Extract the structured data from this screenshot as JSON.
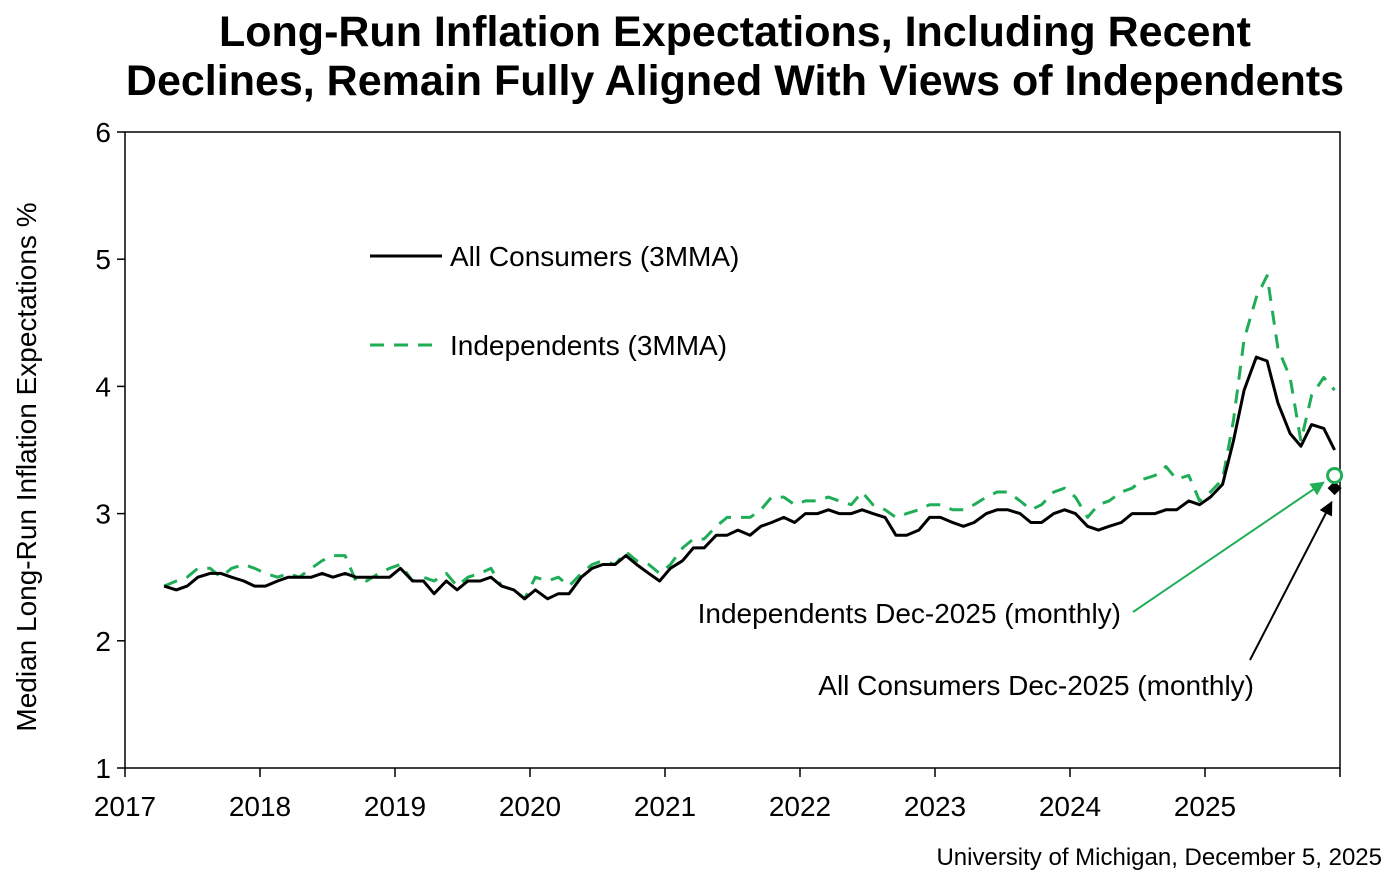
{
  "chart_data": {
    "type": "line",
    "title_lines": [
      "Long-Run Inflation Expectations, Including Recent",
      "Declines, Remain Fully Aligned With Views of Independents"
    ],
    "ylabel": "Median Long-Run Inflation Expectations %",
    "ylim": [
      1,
      6
    ],
    "yticks": [
      "1",
      "2",
      "3",
      "4",
      "5",
      "6"
    ],
    "xlim": [
      2017,
      2026
    ],
    "xticks": [
      "2017",
      "2018",
      "2019",
      "2020",
      "2021",
      "2022",
      "2023",
      "2024",
      "2025"
    ],
    "source": "University of Michigan, December 5, 2025",
    "colors": {
      "all_consumers": "#000000",
      "independents": "#1fae57"
    },
    "series": [
      {
        "name": "All Consumers (3MMA)",
        "style": "solid",
        "x": [
          2017.29,
          2017.38,
          2017.46,
          2017.54,
          2017.63,
          2017.71,
          2017.79,
          2017.88,
          2017.96,
          2018.04,
          2018.13,
          2018.21,
          2018.29,
          2018.38,
          2018.46,
          2018.54,
          2018.63,
          2018.71,
          2018.79,
          2018.88,
          2018.96,
          2019.04,
          2019.13,
          2019.21,
          2019.29,
          2019.38,
          2019.46,
          2019.54,
          2019.63,
          2019.71,
          2019.79,
          2019.88,
          2019.96,
          2020.04,
          2020.13,
          2020.21,
          2020.29,
          2020.38,
          2020.46,
          2020.54,
          2020.63,
          2020.71,
          2020.79,
          2020.88,
          2020.96,
          2021.04,
          2021.13,
          2021.21,
          2021.29,
          2021.38,
          2021.46,
          2021.54,
          2021.63,
          2021.71,
          2021.79,
          2021.88,
          2021.96,
          2022.04,
          2022.13,
          2022.21,
          2022.29,
          2022.38,
          2022.46,
          2022.54,
          2022.63,
          2022.71,
          2022.79,
          2022.88,
          2022.96,
          2023.04,
          2023.13,
          2023.21,
          2023.29,
          2023.38,
          2023.46,
          2023.54,
          2023.63,
          2023.71,
          2023.79,
          2023.88,
          2023.96,
          2024.04,
          2024.13,
          2024.21,
          2024.29,
          2024.38,
          2024.46,
          2024.54,
          2024.63,
          2024.71,
          2024.79,
          2024.88,
          2024.96,
          2025.04,
          2025.13,
          2025.21,
          2025.29,
          2025.38,
          2025.46,
          2025.54,
          2025.63,
          2025.71,
          2025.79,
          2025.88,
          2025.96
        ],
        "y": [
          2.43,
          2.4,
          2.43,
          2.5,
          2.53,
          2.53,
          2.5,
          2.47,
          2.43,
          2.43,
          2.47,
          2.5,
          2.5,
          2.5,
          2.53,
          2.5,
          2.53,
          2.5,
          2.5,
          2.5,
          2.5,
          2.57,
          2.47,
          2.47,
          2.37,
          2.47,
          2.4,
          2.47,
          2.47,
          2.5,
          2.43,
          2.4,
          2.33,
          2.4,
          2.33,
          2.37,
          2.37,
          2.5,
          2.57,
          2.6,
          2.6,
          2.67,
          2.6,
          2.53,
          2.47,
          2.57,
          2.63,
          2.73,
          2.73,
          2.83,
          2.83,
          2.87,
          2.83,
          2.9,
          2.93,
          2.97,
          2.93,
          3.0,
          3.0,
          3.03,
          3.0,
          3.0,
          3.03,
          3.0,
          2.97,
          2.83,
          2.83,
          2.87,
          2.97,
          2.97,
          2.93,
          2.9,
          2.93,
          3.0,
          3.03,
          3.03,
          3.0,
          2.93,
          2.93,
          3.0,
          3.03,
          3.0,
          2.9,
          2.87,
          2.9,
          2.93,
          3.0,
          3.0,
          3.0,
          3.03,
          3.03,
          3.1,
          3.07,
          3.13,
          3.23,
          3.57,
          3.97,
          4.23,
          4.2,
          3.87,
          3.63,
          3.53,
          3.7,
          3.67,
          3.5
        ]
      },
      {
        "name": "Independents (3MMA)",
        "style": "dashed",
        "x": [
          2017.29,
          2017.38,
          2017.46,
          2017.54,
          2017.63,
          2017.71,
          2017.79,
          2017.88,
          2017.96,
          2018.04,
          2018.13,
          2018.21,
          2018.29,
          2018.38,
          2018.46,
          2018.54,
          2018.63,
          2018.71,
          2018.79,
          2018.88,
          2018.96,
          2019.04,
          2019.13,
          2019.21,
          2019.29,
          2019.38,
          2019.46,
          2019.54,
          2019.63,
          2019.71,
          2019.79,
          2019.88,
          2019.96,
          2020.04,
          2020.13,
          2020.21,
          2020.29,
          2020.38,
          2020.46,
          2020.54,
          2020.63,
          2020.71,
          2020.79,
          2020.88,
          2020.96,
          2021.04,
          2021.13,
          2021.21,
          2021.29,
          2021.38,
          2021.46,
          2021.54,
          2021.63,
          2021.71,
          2021.79,
          2021.88,
          2021.96,
          2022.04,
          2022.13,
          2022.21,
          2022.29,
          2022.38,
          2022.46,
          2022.54,
          2022.63,
          2022.71,
          2022.79,
          2022.88,
          2022.96,
          2023.04,
          2023.13,
          2023.21,
          2023.29,
          2023.38,
          2023.46,
          2023.54,
          2023.63,
          2023.71,
          2023.79,
          2023.88,
          2023.96,
          2024.04,
          2024.13,
          2024.21,
          2024.29,
          2024.38,
          2024.46,
          2024.54,
          2024.63,
          2024.71,
          2024.79,
          2024.88,
          2024.96,
          2025.04,
          2025.13,
          2025.21,
          2025.29,
          2025.38,
          2025.46,
          2025.54,
          2025.63,
          2025.71,
          2025.79,
          2025.88,
          2025.96
        ],
        "y": [
          2.43,
          2.47,
          2.5,
          2.57,
          2.57,
          2.5,
          2.57,
          2.6,
          2.57,
          2.53,
          2.5,
          2.53,
          2.5,
          2.57,
          2.63,
          2.67,
          2.67,
          2.47,
          2.47,
          2.53,
          2.57,
          2.6,
          2.47,
          2.5,
          2.47,
          2.53,
          2.43,
          2.5,
          2.53,
          2.57,
          2.43,
          2.4,
          2.33,
          2.5,
          2.47,
          2.5,
          2.43,
          2.53,
          2.6,
          2.63,
          2.6,
          2.7,
          2.63,
          2.6,
          2.53,
          2.6,
          2.73,
          2.8,
          2.8,
          2.9,
          2.97,
          2.97,
          2.97,
          3.03,
          3.13,
          3.13,
          3.07,
          3.1,
          3.1,
          3.13,
          3.1,
          3.07,
          3.17,
          3.07,
          3.03,
          2.97,
          3.0,
          3.03,
          3.07,
          3.07,
          3.03,
          3.03,
          3.07,
          3.13,
          3.17,
          3.17,
          3.1,
          3.03,
          3.07,
          3.17,
          3.2,
          3.13,
          2.97,
          3.07,
          3.1,
          3.17,
          3.2,
          3.27,
          3.3,
          3.37,
          3.27,
          3.3,
          3.1,
          3.17,
          3.27,
          3.73,
          4.37,
          4.7,
          4.87,
          4.3,
          4.07,
          3.57,
          3.93,
          4.07,
          3.97
        ]
      }
    ],
    "monthly_points": [
      {
        "name": "Independents Dec-2025 (monthly)",
        "x": 2025.96,
        "y": 3.3,
        "marker": "open-circle"
      },
      {
        "name": "All Consumers Dec-2025 (monthly)",
        "x": 2025.96,
        "y": 3.2,
        "marker": "filled-diamond"
      }
    ]
  }
}
